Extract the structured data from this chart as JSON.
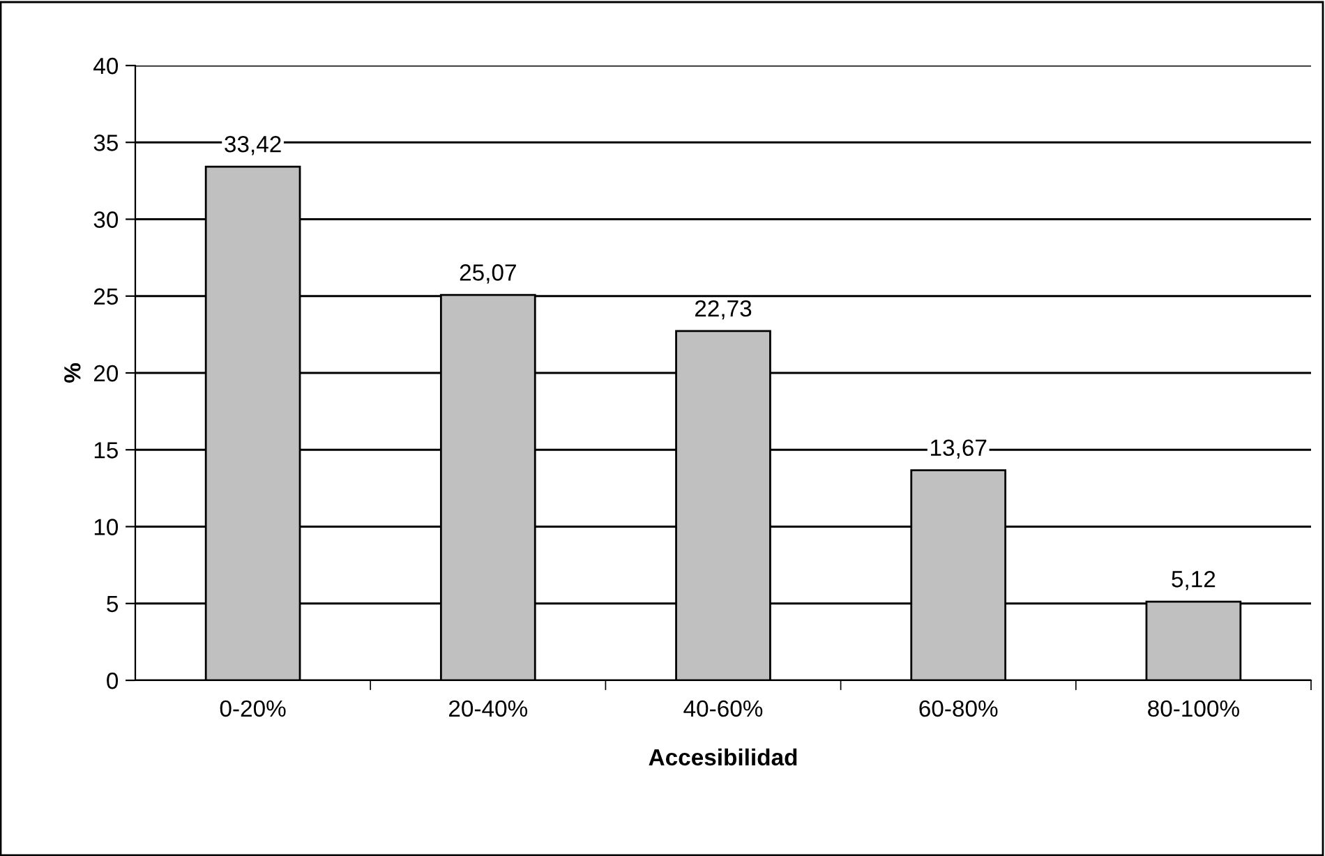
{
  "chart_data": {
    "type": "bar",
    "xlabel": "Accesibilidad",
    "ylabel": "%",
    "categories": [
      "0-20%",
      "20-40%",
      "40-60%",
      "60-80%",
      "80-100%"
    ],
    "values": [
      33.42,
      25.07,
      22.73,
      13.67,
      5.12
    ],
    "value_labels": [
      "33,42",
      "25,07",
      "22,73",
      "13,67",
      "5,12"
    ],
    "color": "#c0c0c0",
    "ylim": [
      0,
      40
    ],
    "yticks": [
      0,
      5,
      10,
      15,
      20,
      25,
      30,
      35,
      40
    ],
    "grid": "y",
    "legend": false
  }
}
